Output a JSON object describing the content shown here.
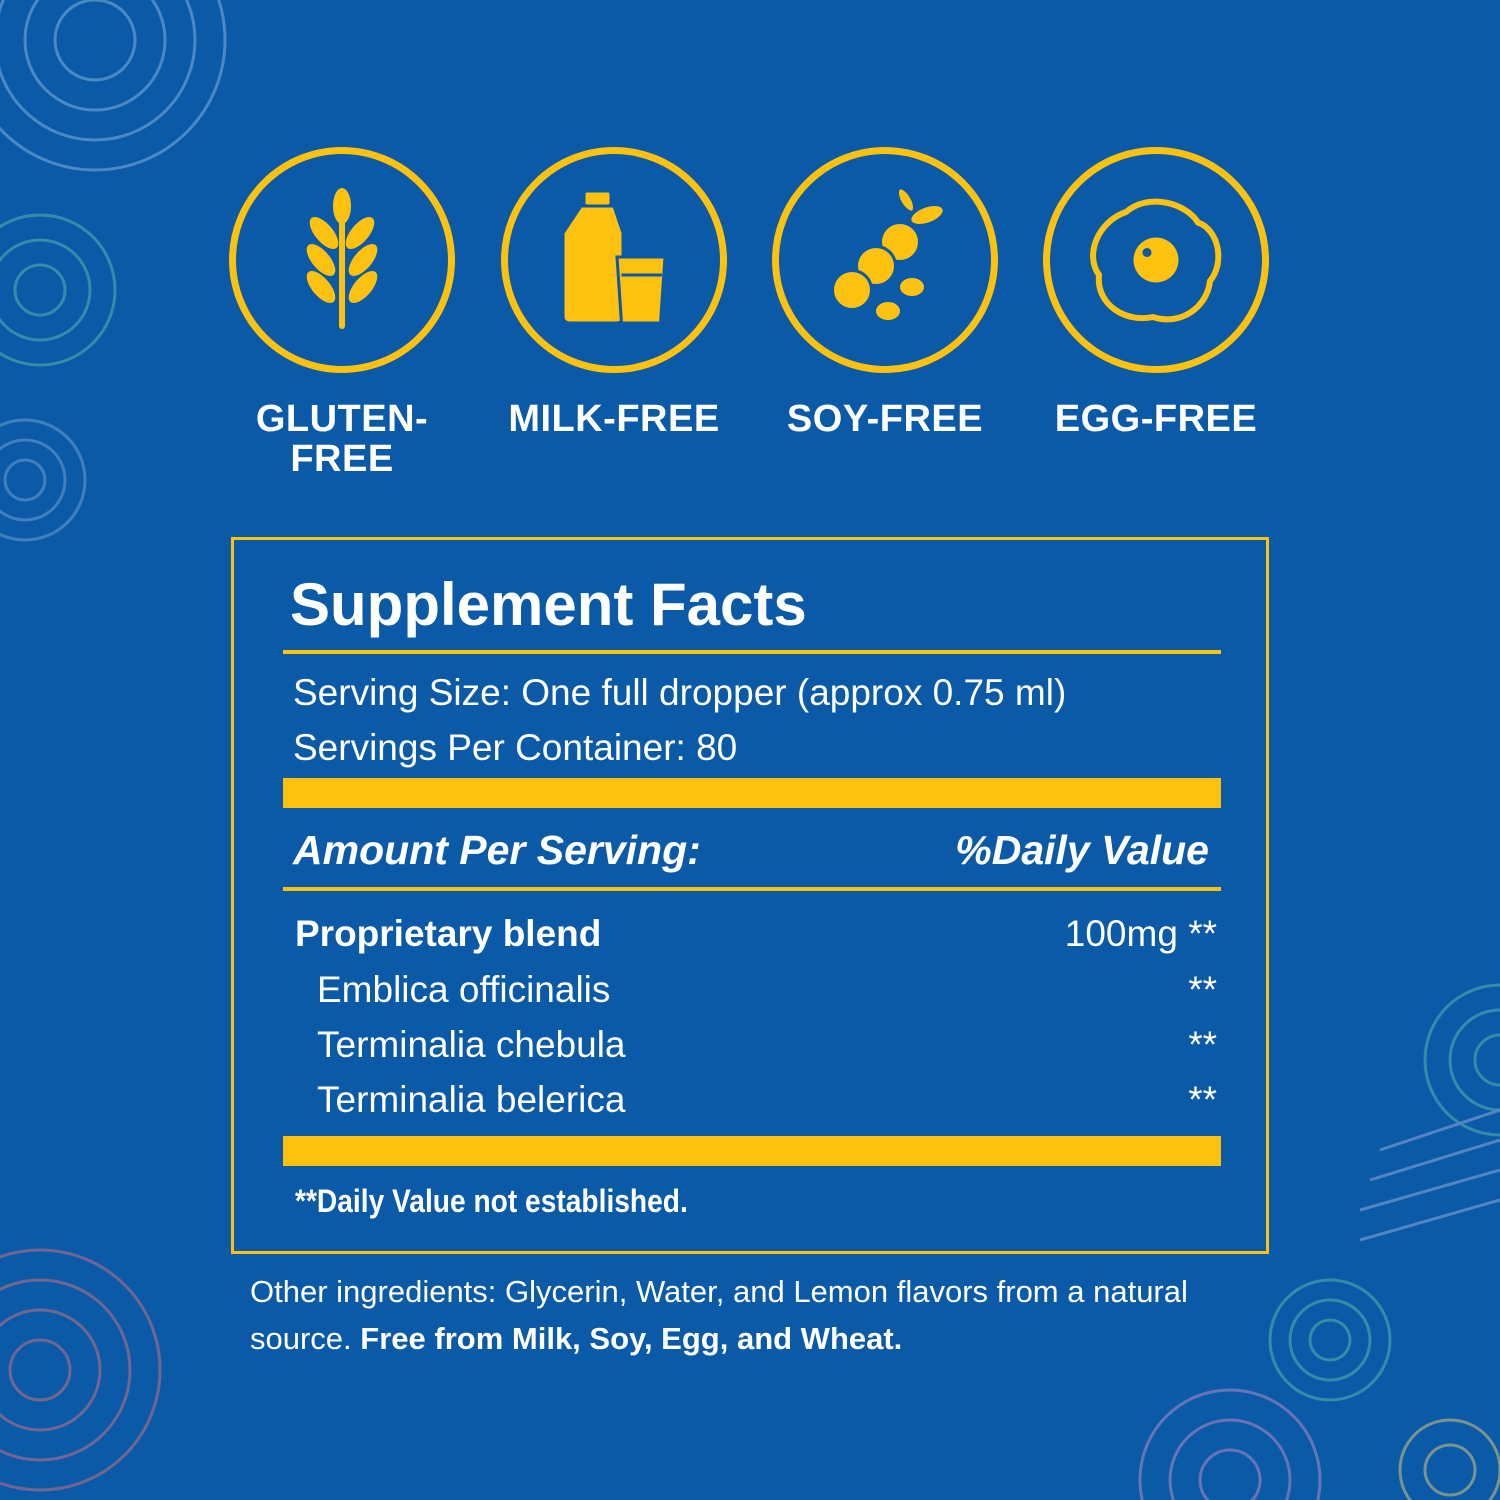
{
  "badges": [
    {
      "label": "GLUTEN-\nFREE",
      "icon": "wheat-icon"
    },
    {
      "label": "MILK-FREE",
      "icon": "milk-bottle-icon"
    },
    {
      "label": "SOY-FREE",
      "icon": "soybean-icon"
    },
    {
      "label": "EGG-FREE",
      "icon": "fried-egg-icon"
    }
  ],
  "facts": {
    "title": "Supplement Facts",
    "serving_size": "Serving Size: One full dropper (approx 0.75 ml)",
    "servings_per_container": "Servings Per Container: 80",
    "amount_header": "Amount Per Serving:",
    "dv_header": "%Daily Value",
    "ingredients": [
      {
        "name": "Proprietary blend",
        "value": "100mg **"
      },
      {
        "name": "Emblica officinalis",
        "value": "**"
      },
      {
        "name": "Terminalia chebula",
        "value": "**"
      },
      {
        "name": "Terminalia belerica",
        "value": "**"
      }
    ],
    "footnote": "**Daily Value not established."
  },
  "other": {
    "text": "Other ingredients: Glycerin, Water, and Lemon flavors from a natural source.",
    "bold": "Free from Milk, Soy, Egg, and Wheat."
  },
  "colors": {
    "background": "#0a5aa8",
    "accent": "#fdc110",
    "text": "#ffffff"
  }
}
